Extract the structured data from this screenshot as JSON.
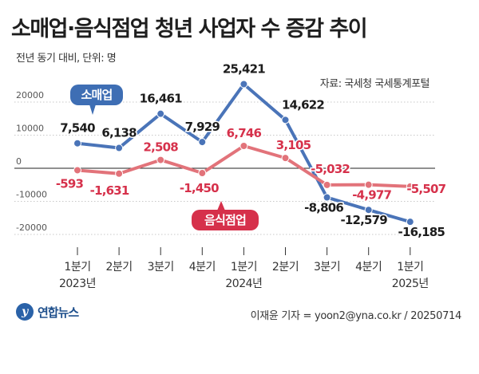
{
  "title": "소매업·음식점업 청년 사업자 수 증감 추이",
  "subtitle": "전년 동기 대비, 단위: 명",
  "source": "자료: 국세청 국세통계포털",
  "credit": "이재윤 기자 = yoon2@yna.co.kr / 20250714",
  "logo": {
    "text": "연합뉴스"
  },
  "colors": {
    "retail": "#4a74b8",
    "food": "#e2737a",
    "retail_label": "#d6314b",
    "retail_badge": "#3e6eb4",
    "food_badge": "#d6314b"
  },
  "chart_data": {
    "type": "line",
    "categories": [
      "1분기",
      "2분기",
      "3분기",
      "4분기",
      "1분기",
      "2분기",
      "3분기",
      "4분기",
      "1분기"
    ],
    "year_labels": [
      {
        "index": 0,
        "label": "2023년"
      },
      {
        "index": 4,
        "label": "2024년"
      },
      {
        "index": 8,
        "label": "2025년"
      }
    ],
    "y_ticks": [
      20000,
      10000,
      0,
      -10000,
      -20000
    ],
    "y_tick_labels": [
      "20000",
      "10000",
      "0",
      "-10000",
      "-20000"
    ],
    "ylim": [
      -25000,
      27000
    ],
    "series": [
      {
        "name": "소매업",
        "values": [
          7540,
          6138,
          16461,
          7929,
          25421,
          14622,
          -8806,
          -12579,
          -16185
        ],
        "value_labels": [
          "7,540",
          "6,138",
          "16,461",
          "7,929",
          "25,421",
          "14,622",
          "-8,806",
          "-12,579",
          "-16,185"
        ]
      },
      {
        "name": "음식점업",
        "values": [
          -593,
          -1631,
          2508,
          -1450,
          6746,
          3105,
          -5032,
          -4977,
          -5507
        ],
        "value_labels": [
          "-593",
          "-1,631",
          "2,508",
          "-1,450",
          "6,746",
          "3,105",
          "-5,032",
          "-4,977",
          "-5,507"
        ]
      }
    ]
  }
}
